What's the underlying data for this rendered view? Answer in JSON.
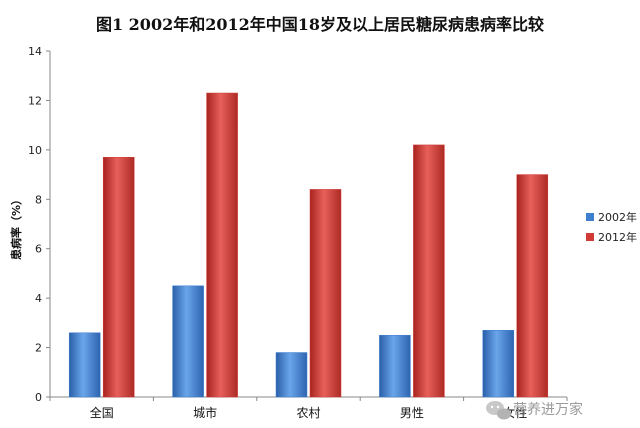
{
  "chart_data": {
    "type": "bar",
    "title": "图1 2002年和2012年中国18岁及以上居民糖尿病患病率比较",
    "ylabel": "患病率（%）",
    "xlabel": "",
    "ylim": [
      0,
      14
    ],
    "yticks": [
      0,
      2,
      4,
      6,
      8,
      10,
      12,
      14
    ],
    "grid": false,
    "legend_position": "right",
    "categories": [
      "全国",
      "城市",
      "农村",
      "男性",
      "女性"
    ],
    "series": [
      {
        "name": "2002年",
        "color": "#3f7fd0",
        "values": [
          2.6,
          4.5,
          1.8,
          2.5,
          2.7
        ]
      },
      {
        "name": "2012年",
        "color": "#d23a36",
        "values": [
          9.7,
          12.3,
          8.4,
          10.2,
          9.0
        ]
      }
    ]
  },
  "watermark": {
    "text": "营养进万家",
    "icon": "wechat-icon"
  }
}
